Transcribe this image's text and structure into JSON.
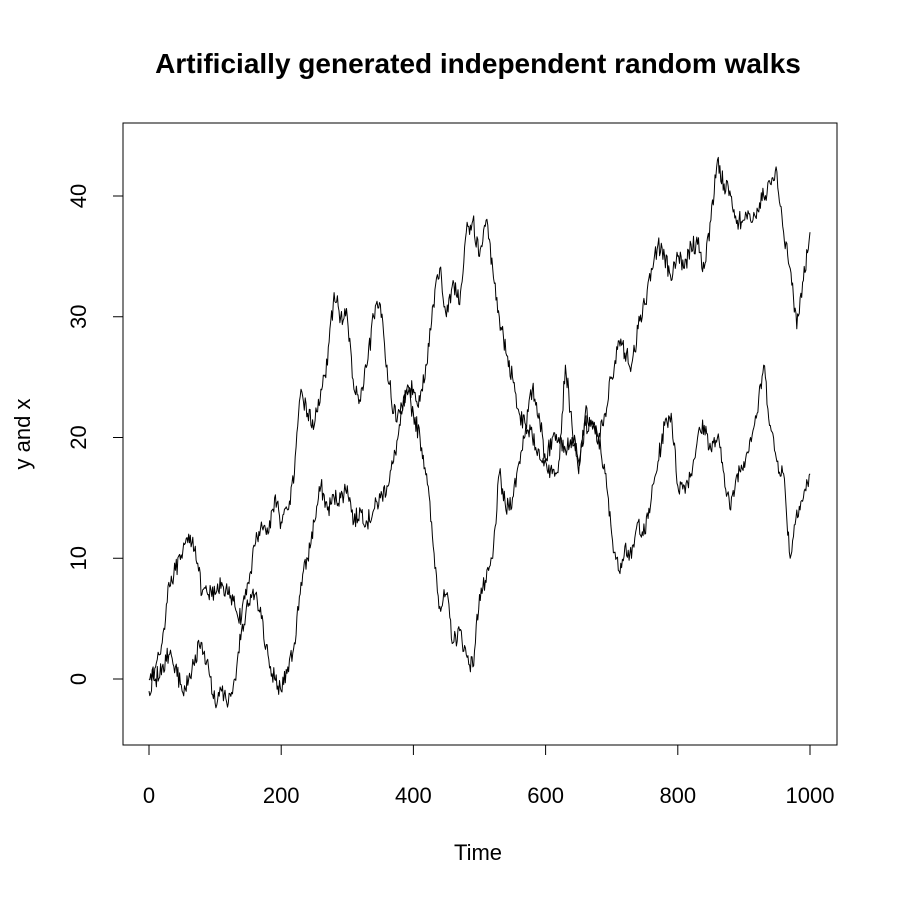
{
  "chart_data": {
    "type": "line",
    "title": "Artificially generated independent random walks",
    "xlabel": "Time",
    "ylabel": "y and x",
    "xlim": [
      0,
      1000
    ],
    "ylim": [
      -5,
      45
    ],
    "x_ticks": [
      "0",
      "200",
      "400",
      "600",
      "800",
      "1000"
    ],
    "y_ticks": [
      "0",
      "10",
      "20",
      "30",
      "40"
    ],
    "grid": false,
    "legend": "none",
    "line_color": "#000000",
    "series": [
      {
        "x": [
          0,
          10,
          20,
          30,
          40,
          50,
          60,
          70,
          80,
          90,
          100,
          110,
          120,
          130,
          140,
          150,
          160,
          170,
          180,
          190,
          200,
          210,
          220,
          230,
          240,
          250,
          260,
          270,
          280,
          290,
          300,
          310,
          320,
          330,
          340,
          350,
          360,
          370,
          380,
          390,
          400,
          410,
          420,
          430,
          440,
          450,
          460,
          470,
          480,
          490,
          500,
          510,
          520,
          530,
          540,
          550,
          560,
          570,
          580,
          590,
          600,
          610,
          620,
          630,
          640,
          650,
          660,
          670,
          680,
          690,
          700,
          710,
          720,
          730,
          740,
          750,
          760,
          770,
          780,
          790,
          800,
          810,
          820,
          830,
          840,
          850,
          860,
          870,
          880,
          890,
          900,
          910,
          920,
          930,
          940,
          950,
          960,
          970,
          980,
          990,
          1000
        ],
        "values": [
          -1,
          1,
          3,
          8,
          9,
          10,
          12,
          11,
          7,
          7,
          7,
          8,
          7,
          6,
          5,
          8,
          11,
          13,
          12,
          15,
          13,
          14,
          17,
          24,
          22,
          21,
          24,
          26,
          32,
          30,
          30,
          24,
          23,
          26,
          30,
          31,
          26,
          22,
          22,
          24,
          24,
          23,
          26,
          31,
          34,
          30,
          33,
          31,
          37,
          38,
          35,
          38,
          34,
          30,
          27,
          25,
          22,
          21,
          20,
          19,
          18,
          20,
          20,
          19,
          20,
          18,
          21,
          21,
          20,
          22,
          25,
          28,
          27,
          26,
          29,
          31,
          34,
          36,
          35,
          33,
          35,
          34,
          36,
          36,
          34,
          38,
          43,
          41,
          40,
          38,
          38,
          38,
          39,
          40,
          41,
          42,
          37,
          34,
          29,
          33,
          37
        ]
      },
      {
        "x": [
          0,
          10,
          20,
          30,
          40,
          50,
          60,
          70,
          80,
          90,
          100,
          110,
          120,
          130,
          140,
          150,
          160,
          170,
          180,
          190,
          200,
          210,
          220,
          230,
          240,
          250,
          260,
          270,
          280,
          290,
          300,
          310,
          320,
          330,
          340,
          350,
          360,
          370,
          380,
          390,
          400,
          410,
          420,
          430,
          440,
          450,
          460,
          470,
          480,
          490,
          500,
          510,
          520,
          530,
          540,
          550,
          560,
          570,
          580,
          590,
          600,
          610,
          620,
          630,
          640,
          650,
          660,
          670,
          680,
          690,
          700,
          710,
          720,
          730,
          740,
          750,
          760,
          770,
          780,
          790,
          800,
          810,
          820,
          830,
          840,
          850,
          860,
          870,
          880,
          890,
          900,
          910,
          920,
          930,
          940,
          950,
          960,
          970,
          980,
          990,
          1000
        ],
        "values": [
          0,
          0,
          1,
          2,
          1,
          -1,
          0,
          2,
          3,
          1,
          -2,
          -1,
          -2,
          0,
          4,
          6,
          7,
          5,
          2,
          0,
          -1,
          1,
          3,
          8,
          10,
          13,
          16,
          14,
          15,
          15,
          16,
          13,
          14,
          13,
          14,
          15,
          16,
          18,
          21,
          24,
          22,
          20,
          17,
          11,
          6,
          7,
          3,
          4,
          2,
          1,
          7,
          8,
          10,
          17,
          14,
          15,
          18,
          21,
          24,
          22,
          18,
          17,
          18,
          26,
          21,
          17,
          22,
          21,
          20,
          17,
          12,
          9,
          11,
          10,
          13,
          12,
          15,
          18,
          21,
          22,
          16,
          16,
          17,
          20,
          21,
          19,
          20,
          17,
          14,
          17,
          18,
          20,
          22,
          26,
          21,
          18,
          17,
          10,
          14,
          15,
          17
        ]
      }
    ]
  }
}
